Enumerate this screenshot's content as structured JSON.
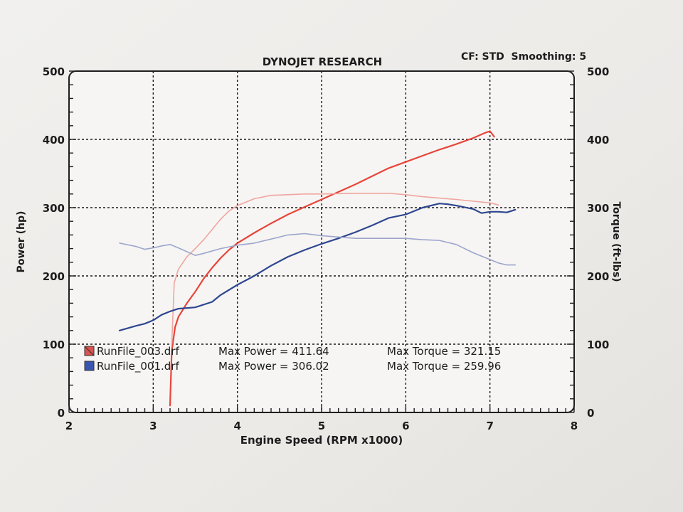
{
  "chart_data": {
    "type": "line",
    "title": "DYNOJET RESEARCH",
    "header_right": "CF: STD  Smoothing: 5",
    "xlabel": "Engine Speed (RPM x1000)",
    "ylabel_left": "Power (hp)",
    "ylabel_right": "Torque (ft-lbs)",
    "xlim": [
      2,
      8
    ],
    "ylim": [
      0,
      500
    ],
    "x_ticks": [
      "2",
      "3",
      "4",
      "5",
      "6",
      "7",
      "8"
    ],
    "y_ticks_left": [
      "0",
      "100",
      "200",
      "300",
      "400",
      "500"
    ],
    "y_ticks_right": [
      "0",
      "100",
      "200",
      "300",
      "400",
      "500"
    ],
    "grid": true,
    "legend_position": "bottom-left",
    "colors": {
      "run3_power": "#e8453a",
      "run3_torque": "#f0a6a0",
      "run1_power": "#2f4690",
      "run1_torque": "#9da5cc"
    },
    "legend": [
      {
        "file": "RunFile_003.drf",
        "power_text": "Max Power = 411.64",
        "torque_text": "Max Torque = 321.15",
        "swatch": "#d9534f"
      },
      {
        "file": "RunFile_001.drf",
        "power_text": "Max Power = 306.02",
        "torque_text": "Max Torque = 259.96",
        "swatch": "#3a56b0"
      }
    ],
    "series": [
      {
        "name": "RunFile_003.drf Power",
        "color": "#e8453a",
        "width": 2.2,
        "x": [
          3.2,
          3.22,
          3.26,
          3.3,
          3.4,
          3.5,
          3.6,
          3.7,
          3.8,
          3.9,
          4.0,
          4.2,
          4.4,
          4.6,
          4.8,
          5.0,
          5.2,
          5.4,
          5.6,
          5.8,
          6.0,
          6.2,
          6.4,
          6.6,
          6.8,
          6.95,
          7.0,
          7.05
        ],
        "y": [
          10,
          90,
          125,
          140,
          160,
          177,
          196,
          212,
          226,
          238,
          248,
          263,
          277,
          290,
          301,
          312,
          323,
          334,
          346,
          358,
          367,
          376,
          385,
          393,
          402,
          410,
          412,
          404
        ]
      },
      {
        "name": "RunFile_003.drf Torque",
        "color": "#f0a6a0",
        "width": 1.6,
        "x": [
          3.22,
          3.25,
          3.3,
          3.4,
          3.5,
          3.6,
          3.7,
          3.8,
          3.9,
          4.0,
          4.2,
          4.4,
          4.6,
          4.8,
          5.0,
          5.4,
          5.8,
          6.0,
          6.2,
          6.6,
          7.0,
          7.1
        ],
        "y": [
          100,
          190,
          210,
          228,
          240,
          253,
          268,
          283,
          295,
          303,
          313,
          318,
          319,
          320,
          320,
          321,
          321,
          319,
          316,
          312,
          307,
          304
        ]
      },
      {
        "name": "RunFile_001.drf Power",
        "color": "#2f4690",
        "width": 2.2,
        "x": [
          2.6,
          2.8,
          2.9,
          3.0,
          3.1,
          3.2,
          3.3,
          3.5,
          3.7,
          3.8,
          4.0,
          4.2,
          4.4,
          4.6,
          4.8,
          5.0,
          5.2,
          5.4,
          5.6,
          5.8,
          6.0,
          6.2,
          6.4,
          6.5,
          6.6,
          6.8,
          6.9,
          7.0,
          7.1,
          7.2,
          7.3
        ],
        "y": [
          120,
          127,
          130,
          135,
          143,
          148,
          152,
          154,
          162,
          172,
          187,
          200,
          215,
          228,
          238,
          247,
          255,
          264,
          274,
          285,
          290,
          300,
          306,
          305,
          303,
          298,
          292,
          294,
          294,
          293,
          297
        ]
      },
      {
        "name": "RunFile_001.drf Torque",
        "color": "#9da5cc",
        "width": 1.6,
        "x": [
          2.6,
          2.8,
          2.9,
          3.0,
          3.1,
          3.2,
          3.3,
          3.5,
          3.6,
          3.8,
          4.0,
          4.2,
          4.4,
          4.6,
          4.8,
          5.0,
          5.4,
          5.8,
          6.0,
          6.2,
          6.4,
          6.6,
          6.8,
          7.0,
          7.1,
          7.2,
          7.3
        ],
        "y": [
          248,
          243,
          239,
          241,
          244,
          246,
          241,
          230,
          233,
          240,
          245,
          248,
          254,
          260,
          262,
          259,
          255,
          255,
          255,
          253,
          252,
          246,
          234,
          224,
          219,
          216,
          216
        ]
      }
    ]
  }
}
